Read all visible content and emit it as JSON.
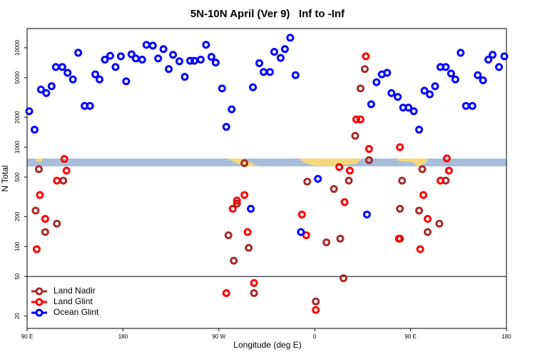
{
  "chart_data": {
    "type": "scatter",
    "title": "5N-10N April (Ver 9)   Inf to -Inf",
    "x_label": "Longitude (deg E)",
    "y_label": "N Total",
    "log_y": true,
    "hline": 50,
    "legend": "lower-left",
    "xlim": [
      90,
      540
    ],
    "xticks": [
      {
        "value": 90,
        "label": "90 E"
      },
      180,
      {
        "value": 270,
        "label": "90 W"
      },
      {
        "value": 360,
        "label": "0"
      },
      {
        "value": 450,
        "label": "90 E"
      },
      {
        "value": 540,
        "label": "180"
      }
    ],
    "ylim": [
      15,
      15600
    ],
    "yticks": [
      20,
      50,
      100,
      200,
      500,
      1000,
      2000,
      5000,
      10000
    ],
    "series": [
      {
        "name": "Land Nadir",
        "color": "#a52a2a",
        "x": [
          98,
          101,
          107,
          118,
          124,
          287,
          279,
          284,
          294,
          298,
          303,
          353,
          361,
          371,
          378,
          384,
          387,
          392,
          398,
          403,
          407,
          411,
          440,
          442,
          440,
          458,
          461,
          466,
          477,
          483
        ],
        "y": [
          230,
          600,
          140,
          170,
          460,
          270,
          130,
          72,
          690,
          97,
          34,
          450,
          28,
          110,
          380,
          120,
          48,
          460,
          1300,
          3900,
          6100,
          740,
          240,
          460,
          120,
          230,
          600,
          140,
          170,
          460
        ]
      },
      {
        "name": "Land Glint",
        "color": "#ff0000",
        "x": [
          99,
          102,
          107,
          118,
          125,
          127,
          277,
          283,
          287,
          294,
          297,
          303,
          348,
          352,
          361,
          383,
          388,
          393,
          399,
          403,
          408,
          411,
          440,
          439,
          459,
          462,
          466,
          478,
          484,
          486
        ],
        "y": [
          94,
          330,
          190,
          460,
          760,
          580,
          34,
          240,
          290,
          330,
          140,
          43,
          210,
          130,
          23,
          630,
          280,
          580,
          1900,
          1900,
          8200,
          960,
          1000,
          120,
          94,
          330,
          190,
          460,
          770,
          580
        ]
      },
      {
        "name": "Ocean Glint",
        "color": "#0000ff",
        "x": [
          92,
          97,
          103,
          108,
          113,
          117,
          123,
          128,
          133,
          138,
          144,
          149,
          154,
          158,
          163,
          168,
          173,
          178,
          183,
          188,
          192,
          198,
          202,
          208,
          213,
          218,
          223,
          227,
          233,
          238,
          243,
          247,
          253,
          258,
          263,
          267,
          273,
          277,
          282,
          300,
          302,
          308,
          312,
          318,
          322,
          328,
          332,
          337,
          342,
          347,
          363,
          409,
          413,
          418,
          423,
          428,
          432,
          438,
          443,
          448,
          453,
          458,
          463,
          468,
          473,
          478,
          483,
          488,
          492,
          497,
          502,
          508,
          513,
          518,
          523,
          527,
          533,
          538
        ],
        "y": [
          2300,
          1500,
          3800,
          3500,
          4100,
          6400,
          6400,
          5600,
          4800,
          8900,
          2600,
          2600,
          5400,
          4800,
          7600,
          8300,
          6400,
          8200,
          4600,
          8600,
          7800,
          7600,
          10700,
          10500,
          7800,
          9700,
          6100,
          8500,
          7300,
          5100,
          7400,
          7400,
          7600,
          10700,
          8100,
          7100,
          3900,
          1600,
          2400,
          240,
          4000,
          7000,
          5700,
          5700,
          9100,
          7900,
          9700,
          12600,
          5300,
          140,
          480,
          210,
          2700,
          4500,
          5400,
          5600,
          3500,
          3200,
          2500,
          2500,
          2300,
          1500,
          3700,
          3400,
          4100,
          6400,
          6400,
          5500,
          4800,
          8900,
          2600,
          2600,
          5300,
          4700,
          7600,
          8500,
          6400,
          8200
        ]
      }
    ]
  }
}
